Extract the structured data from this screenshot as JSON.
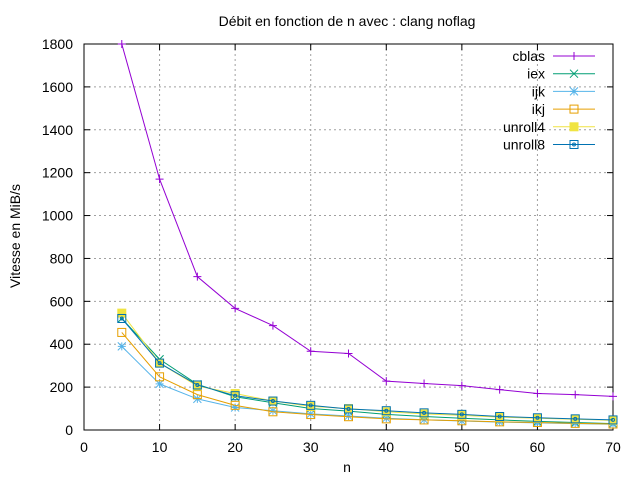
{
  "chart_data": {
    "type": "line",
    "title": "Débit en fonction de n avec :  clang noflag",
    "xlabel": "n",
    "ylabel": "Vitesse en MiB/s",
    "xlim": [
      0,
      70
    ],
    "ylim": [
      0,
      1800
    ],
    "xticks": [
      0,
      10,
      20,
      30,
      40,
      50,
      60,
      70
    ],
    "yticks": [
      0,
      200,
      400,
      600,
      800,
      1000,
      1200,
      1400,
      1600,
      1800
    ],
    "grid": true,
    "legend_position": "top-right",
    "x": [
      5,
      10,
      15,
      20,
      25,
      30,
      35,
      40,
      45,
      50,
      55,
      60,
      65,
      70
    ],
    "series": [
      {
        "name": "cblas",
        "color": "#9400d3",
        "marker": "plus",
        "values": [
          1800,
          1170,
          715,
          567,
          487,
          367,
          357,
          228,
          217,
          207,
          188,
          170,
          165,
          157
        ]
      },
      {
        "name": "iex",
        "color": "#009e73",
        "marker": "cross",
        "values": [
          520,
          330,
          213,
          155,
          127,
          100,
          88,
          73,
          63,
          55,
          47,
          40,
          35,
          30
        ]
      },
      {
        "name": "ijk",
        "color": "#56b4e9",
        "marker": "star",
        "values": [
          390,
          215,
          145,
          105,
          90,
          75,
          65,
          55,
          48,
          42,
          37,
          33,
          30,
          27
        ]
      },
      {
        "name": "ikj",
        "color": "#e69f00",
        "marker": "open-square",
        "values": [
          455,
          248,
          165,
          115,
          85,
          72,
          62,
          52,
          47,
          43,
          38,
          35,
          31,
          28
        ]
      },
      {
        "name": "unroll4",
        "color": "#f0e442",
        "marker": "filled-square",
        "values": [
          545,
          312,
          205,
          170,
          135,
          110,
          100,
          85,
          75,
          68,
          60,
          55,
          50,
          45
        ]
      },
      {
        "name": "unroll8",
        "color": "#0072b2",
        "marker": "circle-square",
        "values": [
          520,
          312,
          210,
          160,
          135,
          115,
          98,
          90,
          80,
          73,
          63,
          57,
          52,
          47
        ]
      }
    ]
  }
}
